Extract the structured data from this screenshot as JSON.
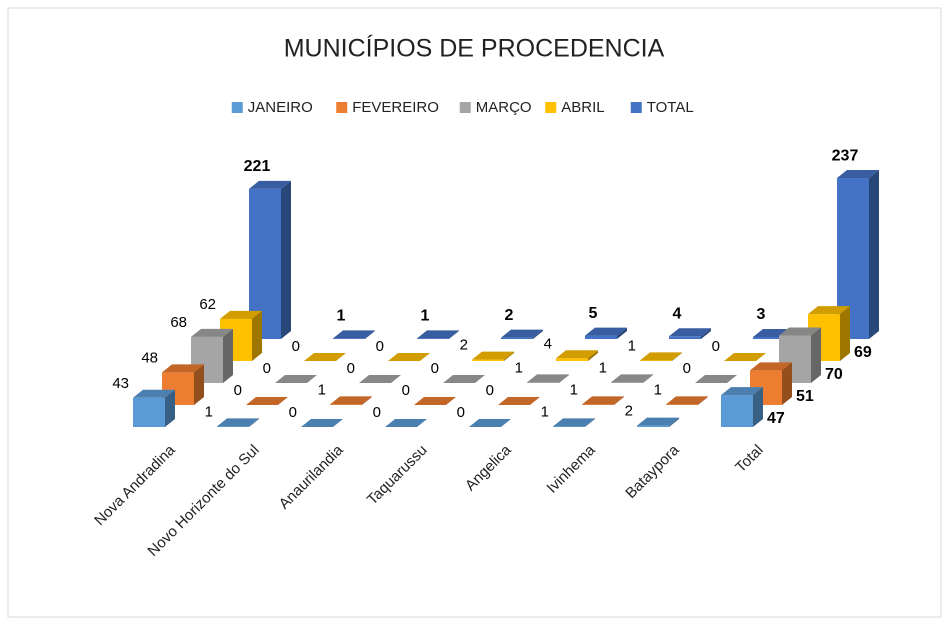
{
  "chart_data": {
    "type": "bar3d",
    "title": "MUNICÍPIOS DE PROCEDENCIA",
    "categories": [
      "Nova Andradina",
      "Novo Horizonte do Sul",
      "Anaurilandia",
      "Taquarussu",
      "Angelica",
      "Ivinhema",
      "Bataypora",
      "Total"
    ],
    "series": [
      {
        "name": "JANEIRO",
        "color": "#5b9bd5",
        "values": [
          43,
          1,
          0,
          0,
          0,
          1,
          2,
          47
        ]
      },
      {
        "name": "FEVEREIRO",
        "color": "#ed7d31",
        "values": [
          48,
          0,
          1,
          0,
          0,
          1,
          1,
          51
        ]
      },
      {
        "name": "MARÇO",
        "color": "#a5a5a5",
        "values": [
          68,
          0,
          0,
          0,
          1,
          1,
          0,
          70
        ]
      },
      {
        "name": "ABRIL",
        "color": "#ffc000",
        "values": [
          62,
          0,
          0,
          2,
          4,
          1,
          0,
          69
        ]
      },
      {
        "name": "TOTAL",
        "color": "#4472c4",
        "values": [
          221,
          1,
          1,
          2,
          5,
          4,
          3,
          237
        ]
      }
    ],
    "ylim": [
      0,
      240
    ],
    "legend": "top"
  }
}
